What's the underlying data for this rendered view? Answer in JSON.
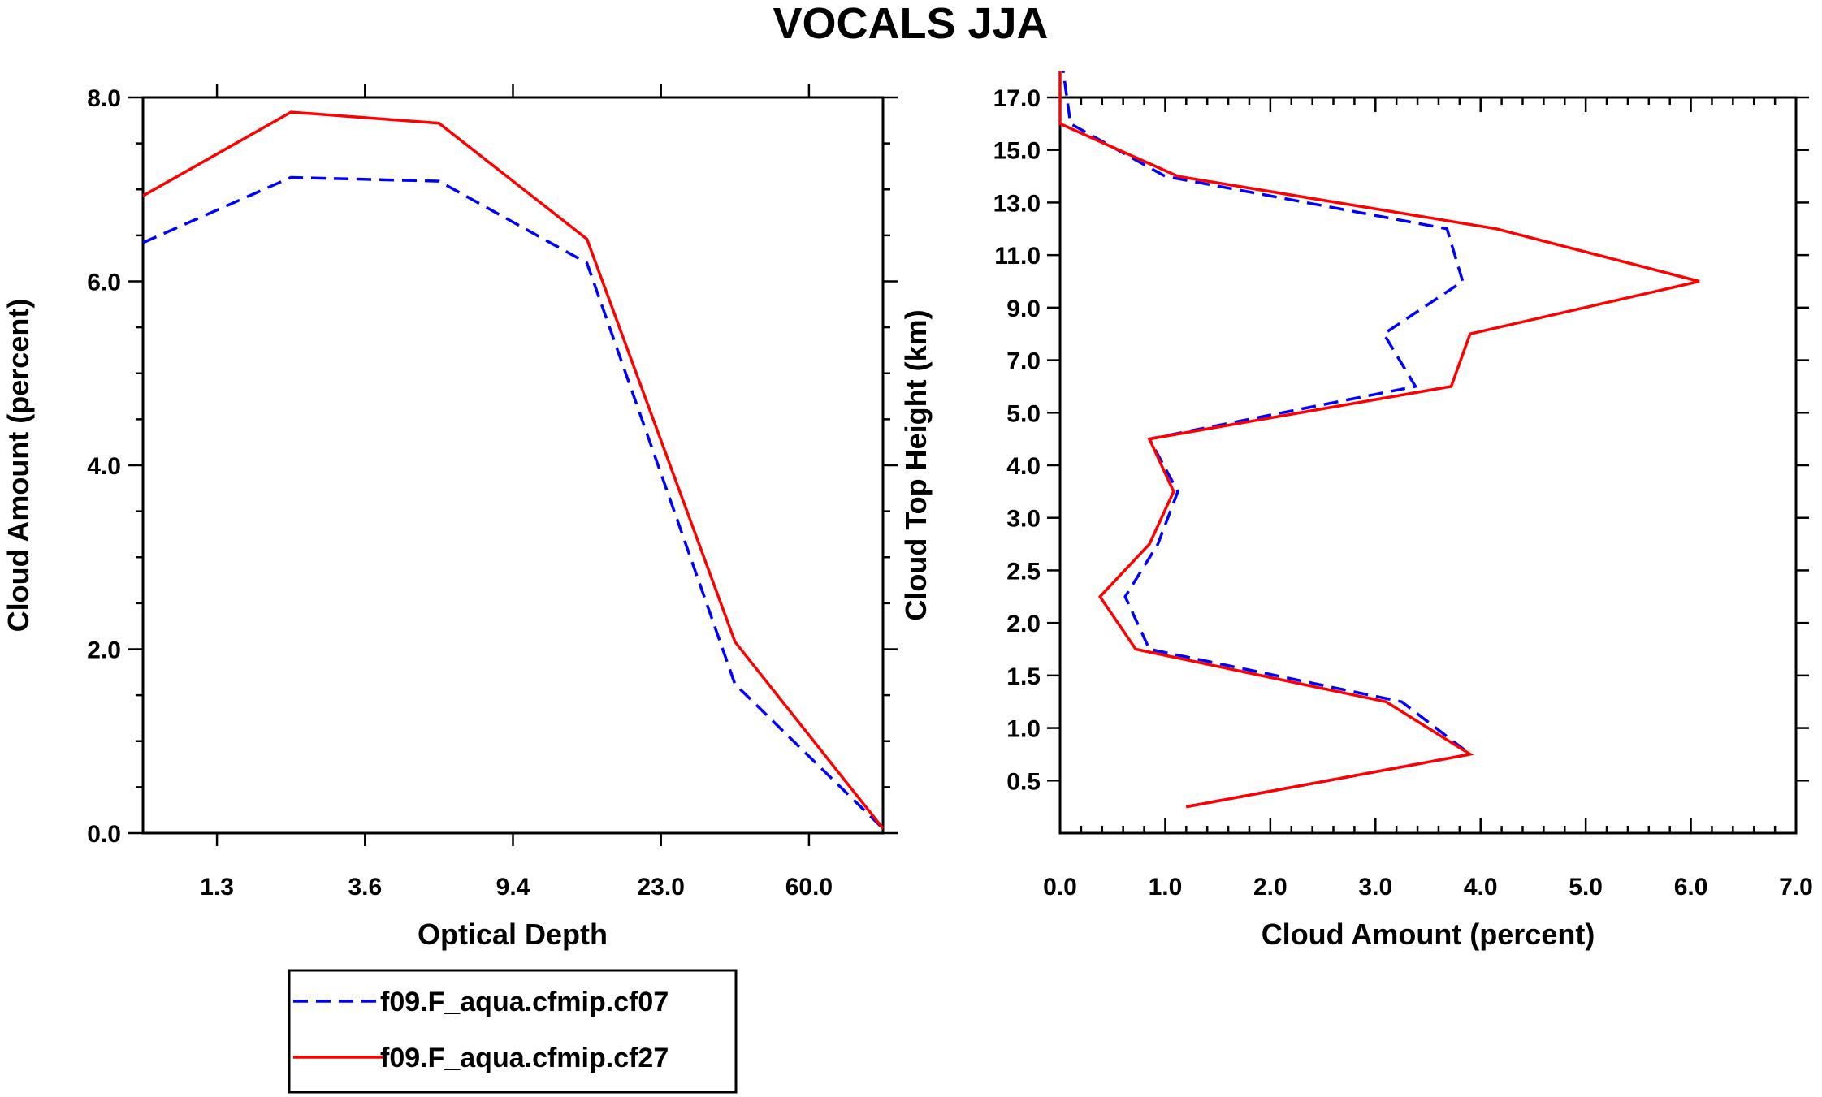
{
  "title": "VOCALS JJA",
  "legend": {
    "entries": [
      {
        "label": "f09.F_aqua.cfmip.cf07",
        "color": "#0000ff",
        "dash": "dashed"
      },
      {
        "label": "f09.F_aqua.cfmip.cf27",
        "color": "#ff0000",
        "dash": "solid"
      }
    ]
  },
  "chart_data": [
    {
      "type": "line",
      "xlabel": "Optical Depth",
      "ylabel": "Cloud Amount (percent)",
      "x_tick_labels": [
        "1.3",
        "3.6",
        "9.4",
        "23.0",
        "60.0"
      ],
      "y_tick_labels": [
        "0.0",
        "2.0",
        "4.0",
        "6.0",
        "8.0"
      ],
      "ylim": [
        0,
        8
      ],
      "x_bins": 5,
      "x": [
        0,
        1,
        2,
        3,
        4,
        5
      ],
      "series": [
        {
          "name": "f09.F_aqua.cfmip.cf07",
          "color": "#0000ff",
          "dash": "dashed",
          "values": [
            6.42,
            7.13,
            7.09,
            6.2,
            1.62,
            0.05
          ]
        },
        {
          "name": "f09.F_aqua.cfmip.cf27",
          "color": "#ff0000",
          "dash": "solid",
          "values": [
            6.93,
            7.84,
            7.72,
            6.46,
            2.08,
            0.05
          ]
        }
      ]
    },
    {
      "type": "line",
      "xlabel": "Cloud Amount (percent)",
      "ylabel": "Cloud Top Height (km)",
      "x_tick_labels": [
        "0.0",
        "1.0",
        "2.0",
        "3.0",
        "4.0",
        "5.0",
        "6.0",
        "7.0"
      ],
      "xlim": [
        0,
        7
      ],
      "y_tick_labels": [
        "0.5",
        "1.0",
        "1.5",
        "2.0",
        "2.5",
        "3.0",
        "4.0",
        "5.0",
        "7.0",
        "9.0",
        "11.0",
        "13.0",
        "15.0",
        "17.0"
      ],
      "y_levels": 14,
      "y": [
        0,
        1,
        2,
        3,
        4,
        5,
        6,
        7,
        8,
        9,
        10,
        11,
        12,
        13,
        14
      ],
      "series": [
        {
          "name": "f09.F_aqua.cfmip.cf07",
          "color": "#0000ff",
          "dash": "dashed",
          "values": [
            1.2,
            3.9,
            3.25,
            0.85,
            0.62,
            0.93,
            1.12,
            0.85,
            3.38,
            3.08,
            3.83,
            3.68,
            1.0,
            0.1,
            0.03
          ]
        },
        {
          "name": "f09.F_aqua.cfmip.cf27",
          "color": "#ff0000",
          "dash": "solid",
          "values": [
            1.2,
            3.9,
            3.1,
            0.72,
            0.38,
            0.85,
            1.08,
            0.85,
            3.72,
            3.9,
            6.08,
            4.15,
            1.12,
            0.0,
            0.0
          ]
        }
      ]
    }
  ]
}
